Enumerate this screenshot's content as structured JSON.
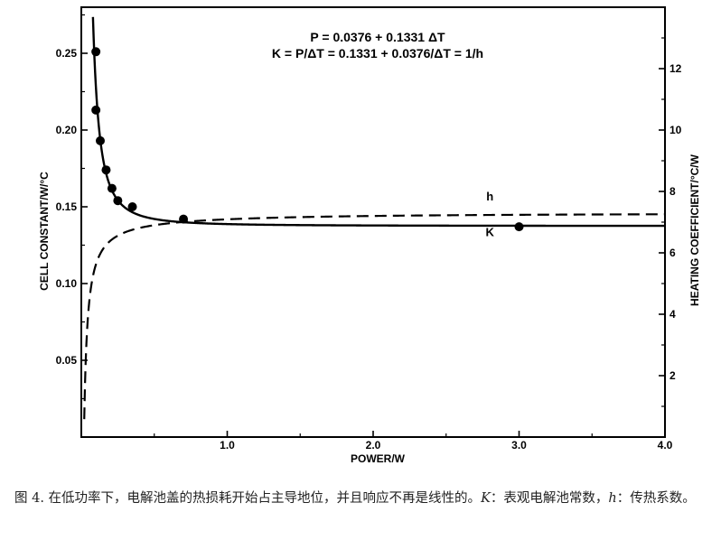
{
  "chart_data": {
    "type": "line",
    "title_lines": [
      "P = 0.0376 + 0.1331 ΔT",
      "K = P/ΔT = 0.1331 + 0.0376/ΔT = 1/h"
    ],
    "xlabel": "POWER/W",
    "ylabel_left": "CELL CONSTANT/W/°C",
    "ylabel_right": "HEATING COEFFICIENT/°C/W",
    "xlim": [
      0,
      4.0
    ],
    "ylim_left": [
      0,
      0.28
    ],
    "ylim_right": [
      0,
      14
    ],
    "x_ticks": [
      {
        "value": 1.0,
        "label": "1.0"
      },
      {
        "value": 2.0,
        "label": "2.0"
      },
      {
        "value": 3.0,
        "label": "3.0"
      },
      {
        "value": 4.0,
        "label": "4.0"
      }
    ],
    "y_left_ticks": [
      {
        "value": 0.05,
        "label": "0.05"
      },
      {
        "value": 0.1,
        "label": "0.10"
      },
      {
        "value": 0.15,
        "label": "0.15"
      },
      {
        "value": 0.2,
        "label": "0.20"
      },
      {
        "value": 0.25,
        "label": "0.25"
      }
    ],
    "y_right_ticks": [
      {
        "value": 2,
        "label": "2"
      },
      {
        "value": 4,
        "label": "4"
      },
      {
        "value": 6,
        "label": "6"
      },
      {
        "value": 8,
        "label": "8"
      },
      {
        "value": 10,
        "label": "10"
      },
      {
        "value": 12,
        "label": "12"
      }
    ],
    "series": [
      {
        "name": "K",
        "axis": "left",
        "style": "solid",
        "color": "#000000",
        "formula": "K = 0.1331 + 0.0376/ΔT, P = 0.0376 + 0.1331 ΔT",
        "points": [
          {
            "x": 0.1,
            "y": 0.251
          },
          {
            "x": 0.1,
            "y": 0.213
          },
          {
            "x": 0.13,
            "y": 0.193
          },
          {
            "x": 0.17,
            "y": 0.174
          },
          {
            "x": 0.21,
            "y": 0.162
          },
          {
            "x": 0.25,
            "y": 0.154
          },
          {
            "x": 0.35,
            "y": 0.15
          },
          {
            "x": 0.7,
            "y": 0.142
          },
          {
            "x": 3.0,
            "y": 0.137
          }
        ]
      },
      {
        "name": "h",
        "axis": "right",
        "style": "dashed",
        "color": "#000000",
        "formula": "h = 1/K"
      }
    ],
    "annotations": [
      {
        "text": "h",
        "x": 2.8,
        "y_left": 0.154
      },
      {
        "text": "K",
        "x": 2.8,
        "y_left": 0.131
      }
    ],
    "grid": false,
    "legend": "none"
  },
  "caption": {
    "prefix": "图 4. 在低功率下，电解池盖的热损耗开始占主导地位，并且响应不再是线性的。",
    "k_sym": "K",
    "k_desc": "：表观电解池常数，",
    "h_sym": "h",
    "h_desc": "：传热系数。"
  }
}
